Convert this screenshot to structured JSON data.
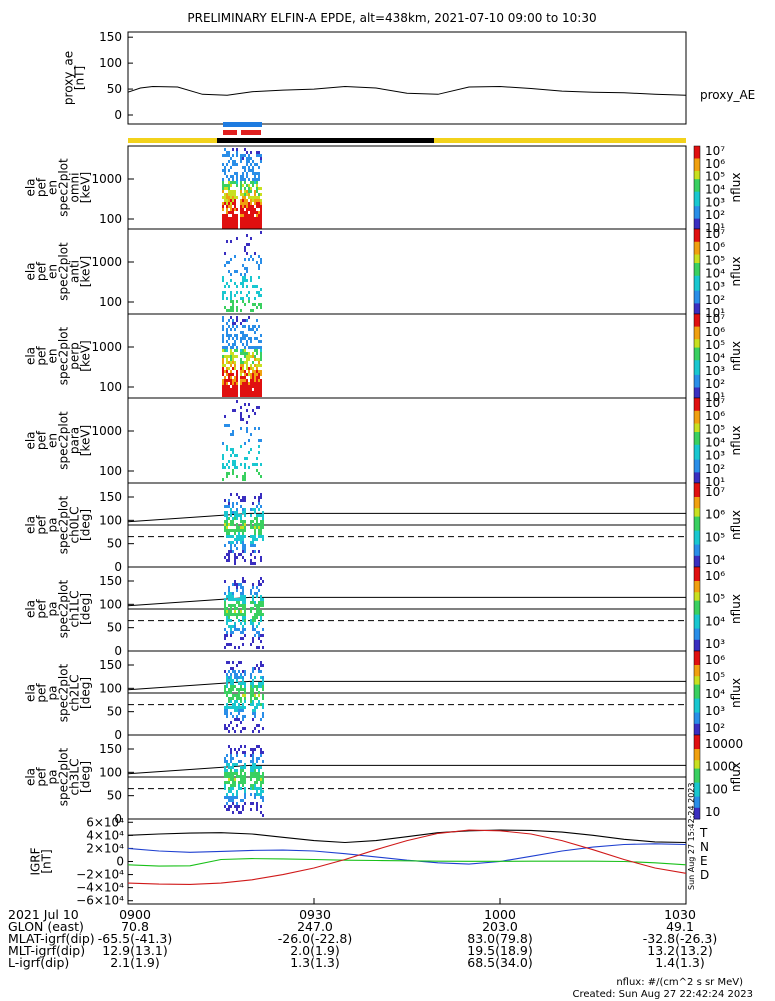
{
  "title": "PRELIMINARY ELFIN-A EPDE, alt=438km, 2021-07-10 09:00 to 10:30",
  "colors": {
    "yellow_bar": "#f2d21b",
    "black_bar": "#000000",
    "blue_marker": "#1e7be0",
    "red_marker": "#e02020",
    "line_T": "#000000",
    "line_N": "#1e3fd0",
    "line_E": "#19c019",
    "line_D": "#d01919"
  },
  "chart_data": [
    {
      "type": "line",
      "panel": "proxy_ae",
      "ylabel": "proxy_ae [nT]",
      "yticks": [
        "150",
        "100",
        "50",
        "0"
      ],
      "ylim": [
        0,
        160
      ],
      "legend": "proxy_AE",
      "x": [
        0,
        2,
        4,
        8,
        12,
        16,
        20,
        25,
        30,
        35,
        40,
        45,
        50,
        55,
        60,
        65,
        70,
        75,
        80,
        85,
        90
      ],
      "values": [
        44,
        52,
        55,
        54,
        40,
        38,
        45,
        48,
        50,
        55,
        52,
        42,
        40,
        54,
        55,
        51,
        46,
        44,
        43,
        40,
        38
      ]
    },
    {
      "type": "heatmap",
      "panel": "ela pef en spec2plot omni [keV]",
      "yticks": [
        "1000",
        "100"
      ],
      "colorbar_label": "nflux",
      "colorbar_ticks": [
        "10⁷",
        "10⁶",
        "10⁵",
        "10⁴",
        "10³",
        "10²",
        "10¹"
      ]
    },
    {
      "type": "heatmap",
      "panel": "ela pef en spec2plot anti [keV]",
      "yticks": [
        "1000",
        "100"
      ],
      "colorbar_label": "nflux",
      "colorbar_ticks": [
        "10⁷",
        "10⁶",
        "10⁵",
        "10⁴",
        "10³",
        "10²",
        "10¹"
      ]
    },
    {
      "type": "heatmap",
      "panel": "ela pef en spec2plot perp [keV]",
      "yticks": [
        "1000",
        "100"
      ],
      "colorbar_label": "nflux",
      "colorbar_ticks": [
        "10⁷",
        "10⁶",
        "10⁵",
        "10⁴",
        "10³",
        "10²",
        "10¹"
      ]
    },
    {
      "type": "heatmap",
      "panel": "ela pef en spec2plot para [keV]",
      "yticks": [
        "1000",
        "100"
      ],
      "colorbar_label": "nflux",
      "colorbar_ticks": [
        "10⁷",
        "10⁶",
        "10⁵",
        "10⁴",
        "10³",
        "10²",
        "10¹"
      ]
    },
    {
      "type": "heatmap",
      "panel": "ela pef pa spec2plot ch0LC [deg]",
      "yticks": [
        "150",
        "100",
        "50",
        "0"
      ],
      "colorbar_label": "nflux",
      "colorbar_ticks": [
        "10⁷",
        "10⁶",
        "10⁵",
        "10⁴"
      ]
    },
    {
      "type": "heatmap",
      "panel": "ela pef pa spec2plot ch1LC [deg]",
      "yticks": [
        "150",
        "100",
        "50",
        "0"
      ],
      "colorbar_label": "nflux",
      "colorbar_ticks": [
        "10⁶",
        "10⁵",
        "10⁴",
        "10³"
      ]
    },
    {
      "type": "heatmap",
      "panel": "ela pef pa spec2plot ch2LC [deg]",
      "yticks": [
        "150",
        "100",
        "50",
        "0"
      ],
      "colorbar_label": "nflux",
      "colorbar_ticks": [
        "10⁶",
        "10⁵",
        "10⁴",
        "10³",
        "10²"
      ]
    },
    {
      "type": "heatmap",
      "panel": "ela pef pa spec2plot ch3LC [deg]",
      "yticks": [
        "150",
        "100",
        "50",
        "0"
      ],
      "colorbar_label": "nflux",
      "colorbar_ticks": [
        "10000",
        "1000",
        "100",
        "10"
      ]
    },
    {
      "type": "line",
      "panel": "IGRF [nT]",
      "ylabel": "IGRF [nT]",
      "yticks": [
        "6×10⁴",
        "4×10⁴",
        "2×10⁴",
        "0",
        "−2×10⁴",
        "−4×10⁴",
        "−6×10⁴"
      ],
      "ylim": [
        -65000,
        65000
      ],
      "x": [
        0,
        5,
        10,
        15,
        20,
        25,
        30,
        35,
        40,
        45,
        50,
        55,
        60,
        65,
        70,
        75,
        80,
        85,
        90
      ],
      "series": [
        {
          "name": "T",
          "values": [
            40000,
            42000,
            43500,
            44000,
            42000,
            37000,
            32000,
            29000,
            32000,
            38000,
            44000,
            47000,
            48000,
            47500,
            45000,
            40000,
            34000,
            30000,
            29000
          ]
        },
        {
          "name": "N",
          "values": [
            20000,
            16000,
            14000,
            15500,
            17000,
            17500,
            16000,
            12000,
            7000,
            2000,
            -2000,
            -4000,
            0,
            8000,
            16000,
            22000,
            26000,
            27000,
            26000
          ]
        },
        {
          "name": "E",
          "values": [
            -5000,
            -7000,
            -6500,
            3000,
            4500,
            4000,
            3000,
            2000,
            1500,
            1000,
            500,
            300,
            300,
            500,
            500,
            500,
            0,
            -2000,
            -5000
          ]
        },
        {
          "name": "D",
          "values": [
            -33000,
            -34500,
            -35000,
            -33000,
            -28000,
            -20000,
            -10000,
            3000,
            18000,
            32000,
            43000,
            48000,
            47000,
            42000,
            32000,
            18000,
            3000,
            -10000,
            -18000
          ]
        }
      ],
      "legend_labels": [
        "T",
        "N",
        "E",
        "D"
      ]
    }
  ],
  "side_labels": {
    "proxy_ae": "proxy_AE",
    "timestamp_vertical": "Sun Aug 27 15:42:24 2023"
  },
  "panels_text": {
    "p0": [
      "proxy_ae",
      "[nT]"
    ],
    "p1": [
      "ela",
      "pef",
      "en",
      "spec2plot",
      "omni",
      "[keV]"
    ],
    "p2": [
      "ela",
      "pef",
      "en",
      "spec2plot",
      "anti",
      "[keV]"
    ],
    "p3": [
      "ela",
      "pef",
      "en",
      "spec2plot",
      "perp",
      "[keV]"
    ],
    "p4": [
      "ela",
      "pef",
      "en",
      "spec2plot",
      "para",
      "[keV]"
    ],
    "p5": [
      "ela",
      "pef",
      "pa",
      "spec2plot",
      "ch0LC",
      "[deg]"
    ],
    "p6": [
      "ela",
      "pef",
      "pa",
      "spec2plot",
      "ch1LC",
      "[deg]"
    ],
    "p7": [
      "ela",
      "pef",
      "pa",
      "spec2plot",
      "ch2LC",
      "[deg]"
    ],
    "p8": [
      "ela",
      "pef",
      "pa",
      "spec2plot",
      "ch3LC",
      "[deg]"
    ],
    "p9": [
      "IGRF",
      "[nT]"
    ]
  },
  "footer": {
    "rows": [
      {
        "label": "2021 Jul 10",
        "values": [
          "0900",
          "0930",
          "1000",
          "1030"
        ]
      },
      {
        "label": "GLON (east)",
        "values": [
          "70.8",
          "247.0",
          "203.0",
          "49.1"
        ]
      },
      {
        "label": "MLAT-igrf(dip)",
        "values": [
          "-65.5(-41.3)",
          "-26.0(-22.8)",
          "83.0(79.8)",
          "-32.8(-26.3)"
        ]
      },
      {
        "label": "MLT-igrf(dip)",
        "values": "12.9(13.1)|2.0(1.9)|19.5(18.9)|13.2(13.2)"
      },
      {
        "label": "L-igrf(dip)",
        "values": [
          "2.1(1.9)",
          "1.3(1.3)",
          "68.5(34.0)",
          "1.4(1.3)"
        ]
      }
    ],
    "units": "nflux: #/(cm^2 s sr MeV)",
    "created": "Created: Sun Aug 27 22:42:24 2023"
  }
}
